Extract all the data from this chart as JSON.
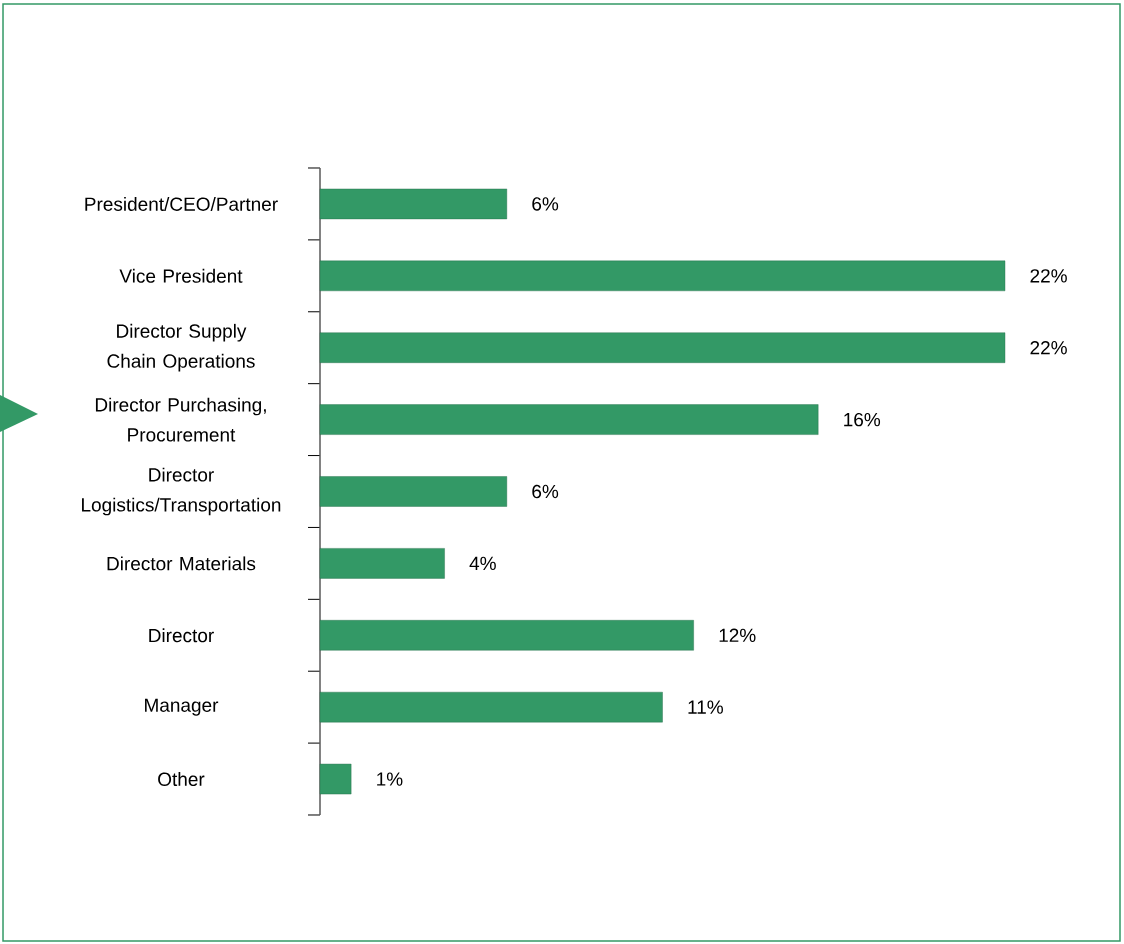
{
  "chart_data": {
    "type": "bar",
    "orientation": "horizontal",
    "categories": [
      "President/CEO/Partner",
      "Vice President",
      "Director Supply Chain Operations",
      "Director Purchasing, Procurement",
      "Director Logistics/Transportation",
      "Director Materials",
      "Director",
      "Manager",
      "Other"
    ],
    "values": [
      6,
      22,
      22,
      16,
      6,
      4,
      12,
      11,
      1
    ],
    "value_labels": [
      "6%",
      "22%",
      "22%",
      "16%",
      "6%",
      "4%",
      "12%",
      "11%",
      "1%"
    ],
    "color": "#339966"
  }
}
